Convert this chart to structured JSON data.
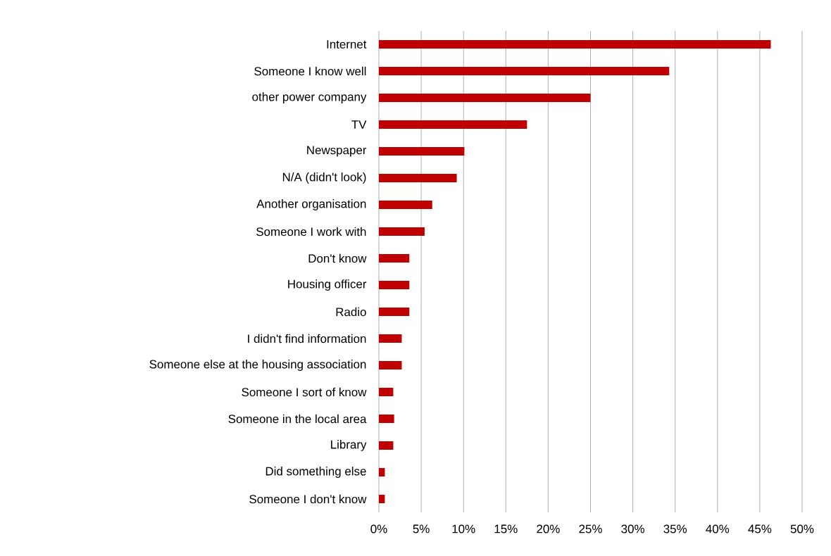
{
  "chart_data": {
    "type": "bar",
    "orientation": "horizontal",
    "categories": [
      "Internet",
      "Someone I know well",
      "other power company",
      "TV",
      "Newspaper",
      "N/A (didn't look)",
      "Another organisation",
      "Someone I work with",
      "Don't know",
      "Housing officer",
      "Radio",
      "I didn't find information",
      "Someone else at the housing association",
      "Someone I sort of know",
      "Someone in the local area",
      "Library",
      "Did something else",
      "Someone I don't know"
    ],
    "values": [
      46.3,
      34.3,
      25.0,
      17.5,
      10.1,
      9.2,
      6.3,
      5.4,
      3.6,
      3.6,
      3.6,
      2.7,
      2.7,
      1.7,
      1.8,
      1.7,
      0.7,
      0.7
    ],
    "color": "#c00000",
    "xlim": [
      0,
      50
    ],
    "xticks": [
      {
        "value": 0,
        "label": "0%"
      },
      {
        "value": 5,
        "label": "5%"
      },
      {
        "value": 10,
        "label": "10%"
      },
      {
        "value": 15,
        "label": "15%"
      },
      {
        "value": 20,
        "label": "20%"
      },
      {
        "value": 25,
        "label": "25%"
      },
      {
        "value": 30,
        "label": "30%"
      },
      {
        "value": 35,
        "label": "35%"
      },
      {
        "value": 40,
        "label": "40%"
      },
      {
        "value": 45,
        "label": "45%"
      },
      {
        "value": 50,
        "label": "50%"
      }
    ],
    "grid": "x"
  }
}
